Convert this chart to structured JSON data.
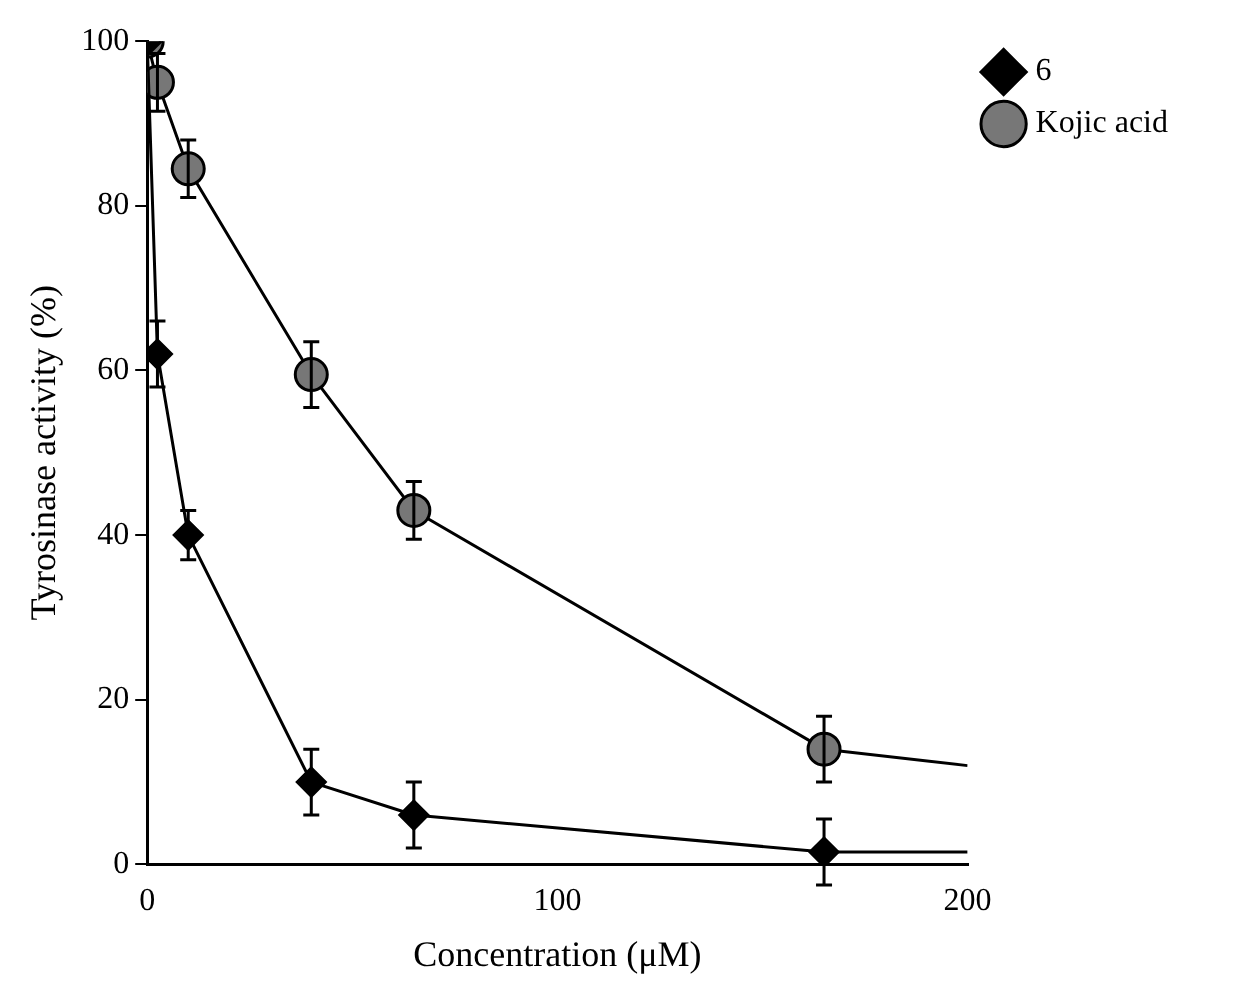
{
  "chart_data": {
    "type": "line",
    "xlabel": "Concentration (μM)",
    "ylabel": "Tyrosinase activity (%)",
    "xlim": [
      0,
      200
    ],
    "xticks": [
      0,
      100,
      200
    ],
    "ylim": [
      0,
      100
    ],
    "yticks": [
      0,
      20,
      40,
      60,
      80,
      100
    ],
    "grid": false,
    "legend": "top right",
    "line_style": "solid",
    "series": [
      {
        "name": "6",
        "color": "#000000",
        "marker": "diamond",
        "x": [
          0,
          2.5,
          10,
          40,
          65,
          165
        ],
        "values": [
          100,
          62,
          40,
          10,
          6,
          1.5
        ],
        "errors": [
          null,
          4,
          3,
          4,
          4,
          4
        ]
      },
      {
        "name": "Kojic acid",
        "color": "#777777",
        "marker": "circle",
        "x": [
          0,
          2.5,
          10,
          40,
          65,
          165
        ],
        "values": [
          100,
          95,
          84.5,
          59.5,
          43,
          14
        ],
        "errors": [
          null,
          3.5,
          3.5,
          4,
          3.5,
          4
        ]
      },
      {
        "color": "#000000",
        "marker": "none",
        "x": [
          165,
          200
        ],
        "values": [
          1.5,
          1.5
        ]
      },
      {
        "color": "#000000",
        "marker": "none",
        "x": [
          165,
          200
        ],
        "values": [
          14,
          12
        ]
      }
    ]
  }
}
